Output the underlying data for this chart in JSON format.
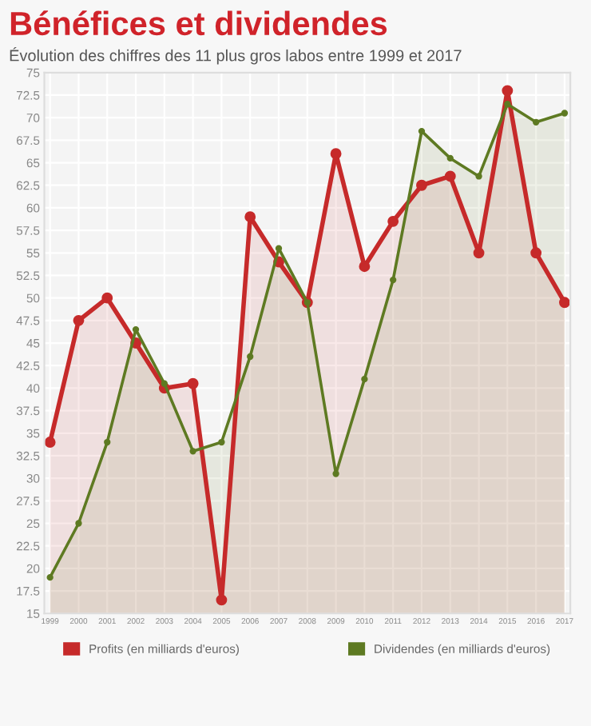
{
  "chart_data": {
    "type": "area",
    "title": "Bénéfices et dividendes",
    "subtitle": "Évolution des chiffres des 11 plus gros labos entre 1999 et 2017",
    "categories": [
      "1999",
      "2000",
      "2001",
      "2002",
      "2003",
      "2004",
      "2005",
      "2006",
      "2007",
      "2008",
      "2009",
      "2010",
      "2011",
      "2012",
      "2013",
      "2014",
      "2015",
      "2016",
      "2017"
    ],
    "series": [
      {
        "name": "Profits (en milliards d'euros)",
        "color": "#c62a2a",
        "values": [
          34,
          47.5,
          50,
          45,
          40,
          40.5,
          16.5,
          59,
          54,
          49.5,
          66,
          53.5,
          58.5,
          62.5,
          63.5,
          55,
          73,
          55,
          49.5
        ]
      },
      {
        "name": "Dividendes (en milliards d'euros)",
        "color": "#5e7a22",
        "values": [
          19,
          25,
          34,
          46.5,
          40.5,
          33,
          34,
          43.5,
          55.5,
          49.5,
          30.5,
          41,
          52,
          68.5,
          65.5,
          63.5,
          71.5,
          69.5,
          70.5
        ]
      }
    ],
    "ylim": [
      15,
      75
    ],
    "yticks": [
      15,
      17.5,
      20,
      22.5,
      25,
      27.5,
      30,
      32.5,
      35,
      37.5,
      40,
      42.5,
      45,
      47.5,
      50,
      52.5,
      55,
      57.5,
      60,
      62.5,
      65,
      67.5,
      70,
      72.5,
      75
    ],
    "grid": true,
    "legend": "bottom",
    "marker": "circle",
    "line_style": "solid"
  }
}
